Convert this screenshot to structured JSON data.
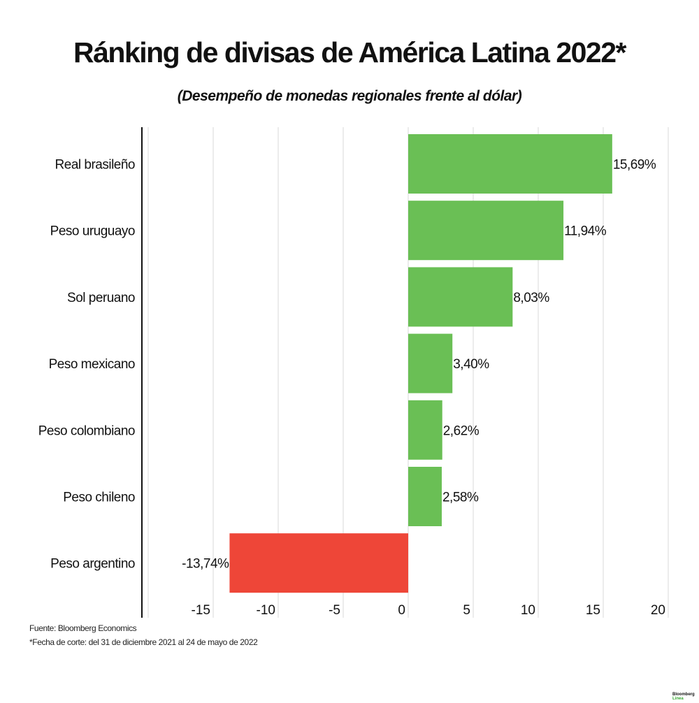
{
  "chart_data": {
    "type": "bar",
    "orientation": "horizontal",
    "title": "Ránking de divisas de América Latina 2022*",
    "subtitle": "(Desempeño de monedas regionales frente al dólar)",
    "categories": [
      "Real brasileño",
      "Peso uruguayo",
      "Sol peruano",
      "Peso mexicano",
      "Peso colombiano",
      "Peso chileno",
      "Peso argentino"
    ],
    "values": [
      15.69,
      11.94,
      8.03,
      3.4,
      2.62,
      2.58,
      -13.74
    ],
    "data_labels": [
      "15,69%",
      "11,94%",
      "8,03%",
      "3,40%",
      "2,62%",
      "2,58%",
      "-13,74%"
    ],
    "xlim": [
      -20,
      20
    ],
    "xticks": [
      -15,
      -10,
      -5,
      0,
      5,
      10,
      15,
      20
    ],
    "xtick_labels": [
      "-15",
      "-10",
      "-5",
      "0",
      "5",
      "10",
      "15",
      "20"
    ],
    "grid": true,
    "colors": {
      "positive": "#6abf55",
      "negative": "#ee4638"
    }
  },
  "footer": {
    "source": "Fuente: Bloomberg Economics",
    "note": "*Fecha de corte: del 31 de diciembre 2021 al 24 de mayo de 2022"
  },
  "logo": {
    "line1": "Bloomberg",
    "line2": "Línea",
    "accent": "#3aa935"
  }
}
